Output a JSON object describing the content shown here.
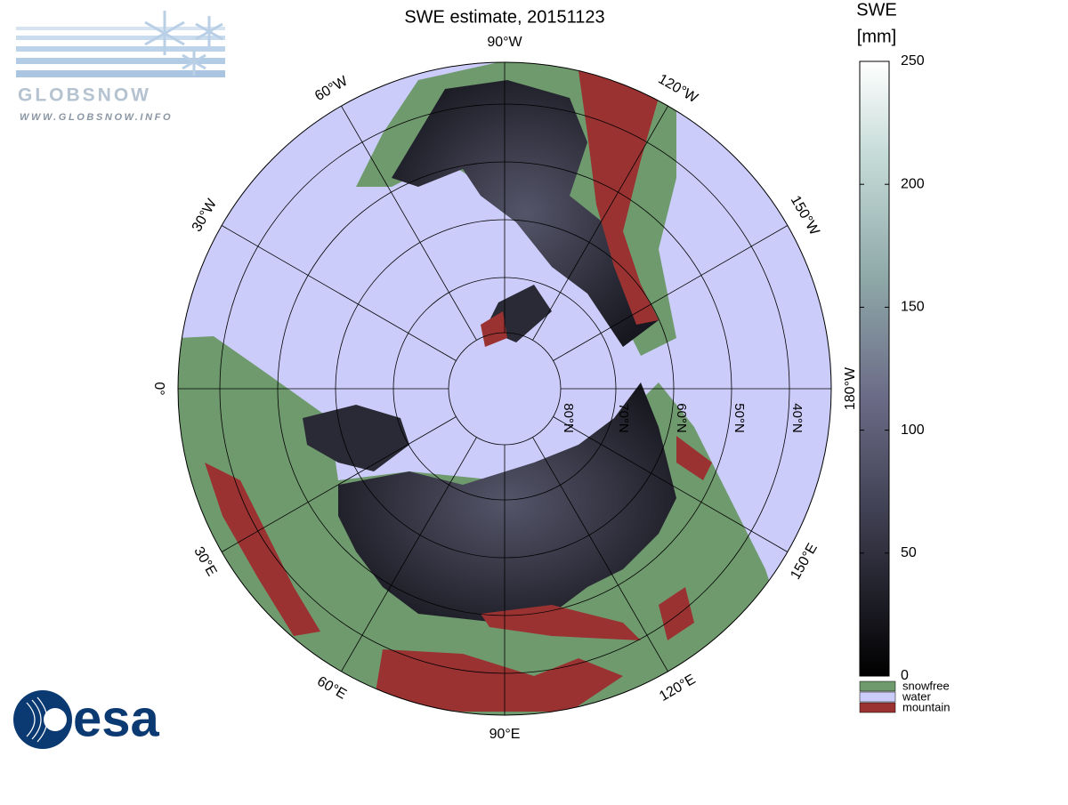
{
  "title": "SWE estimate, 20151123",
  "logos": {
    "globsnow": "GLOBSNOW",
    "globsnow_url": "WWW.GLOBSNOW.INFO",
    "esa": "esa"
  },
  "map": {
    "longitude_labels": [
      "0°",
      "30°E",
      "60°E",
      "90°E",
      "120°E",
      "150°E",
      "180°W",
      "150°W",
      "120°W",
      "90°W",
      "60°W",
      "30°W"
    ],
    "latitude_labels": [
      "80°N",
      "70°N",
      "60°N",
      "50°N",
      "40°N"
    ]
  },
  "colorbar": {
    "title": [
      "SWE",
      "[mm]"
    ],
    "lim": [
      0,
      250
    ],
    "ticks": [
      0,
      50,
      100,
      150,
      200,
      250
    ]
  },
  "legend": [
    {
      "label": "snowfree",
      "color": "#6f9a6d"
    },
    {
      "label": "water",
      "color": "#ccccfa"
    },
    {
      "label": "mountain",
      "color": "#9b3232"
    }
  ]
}
